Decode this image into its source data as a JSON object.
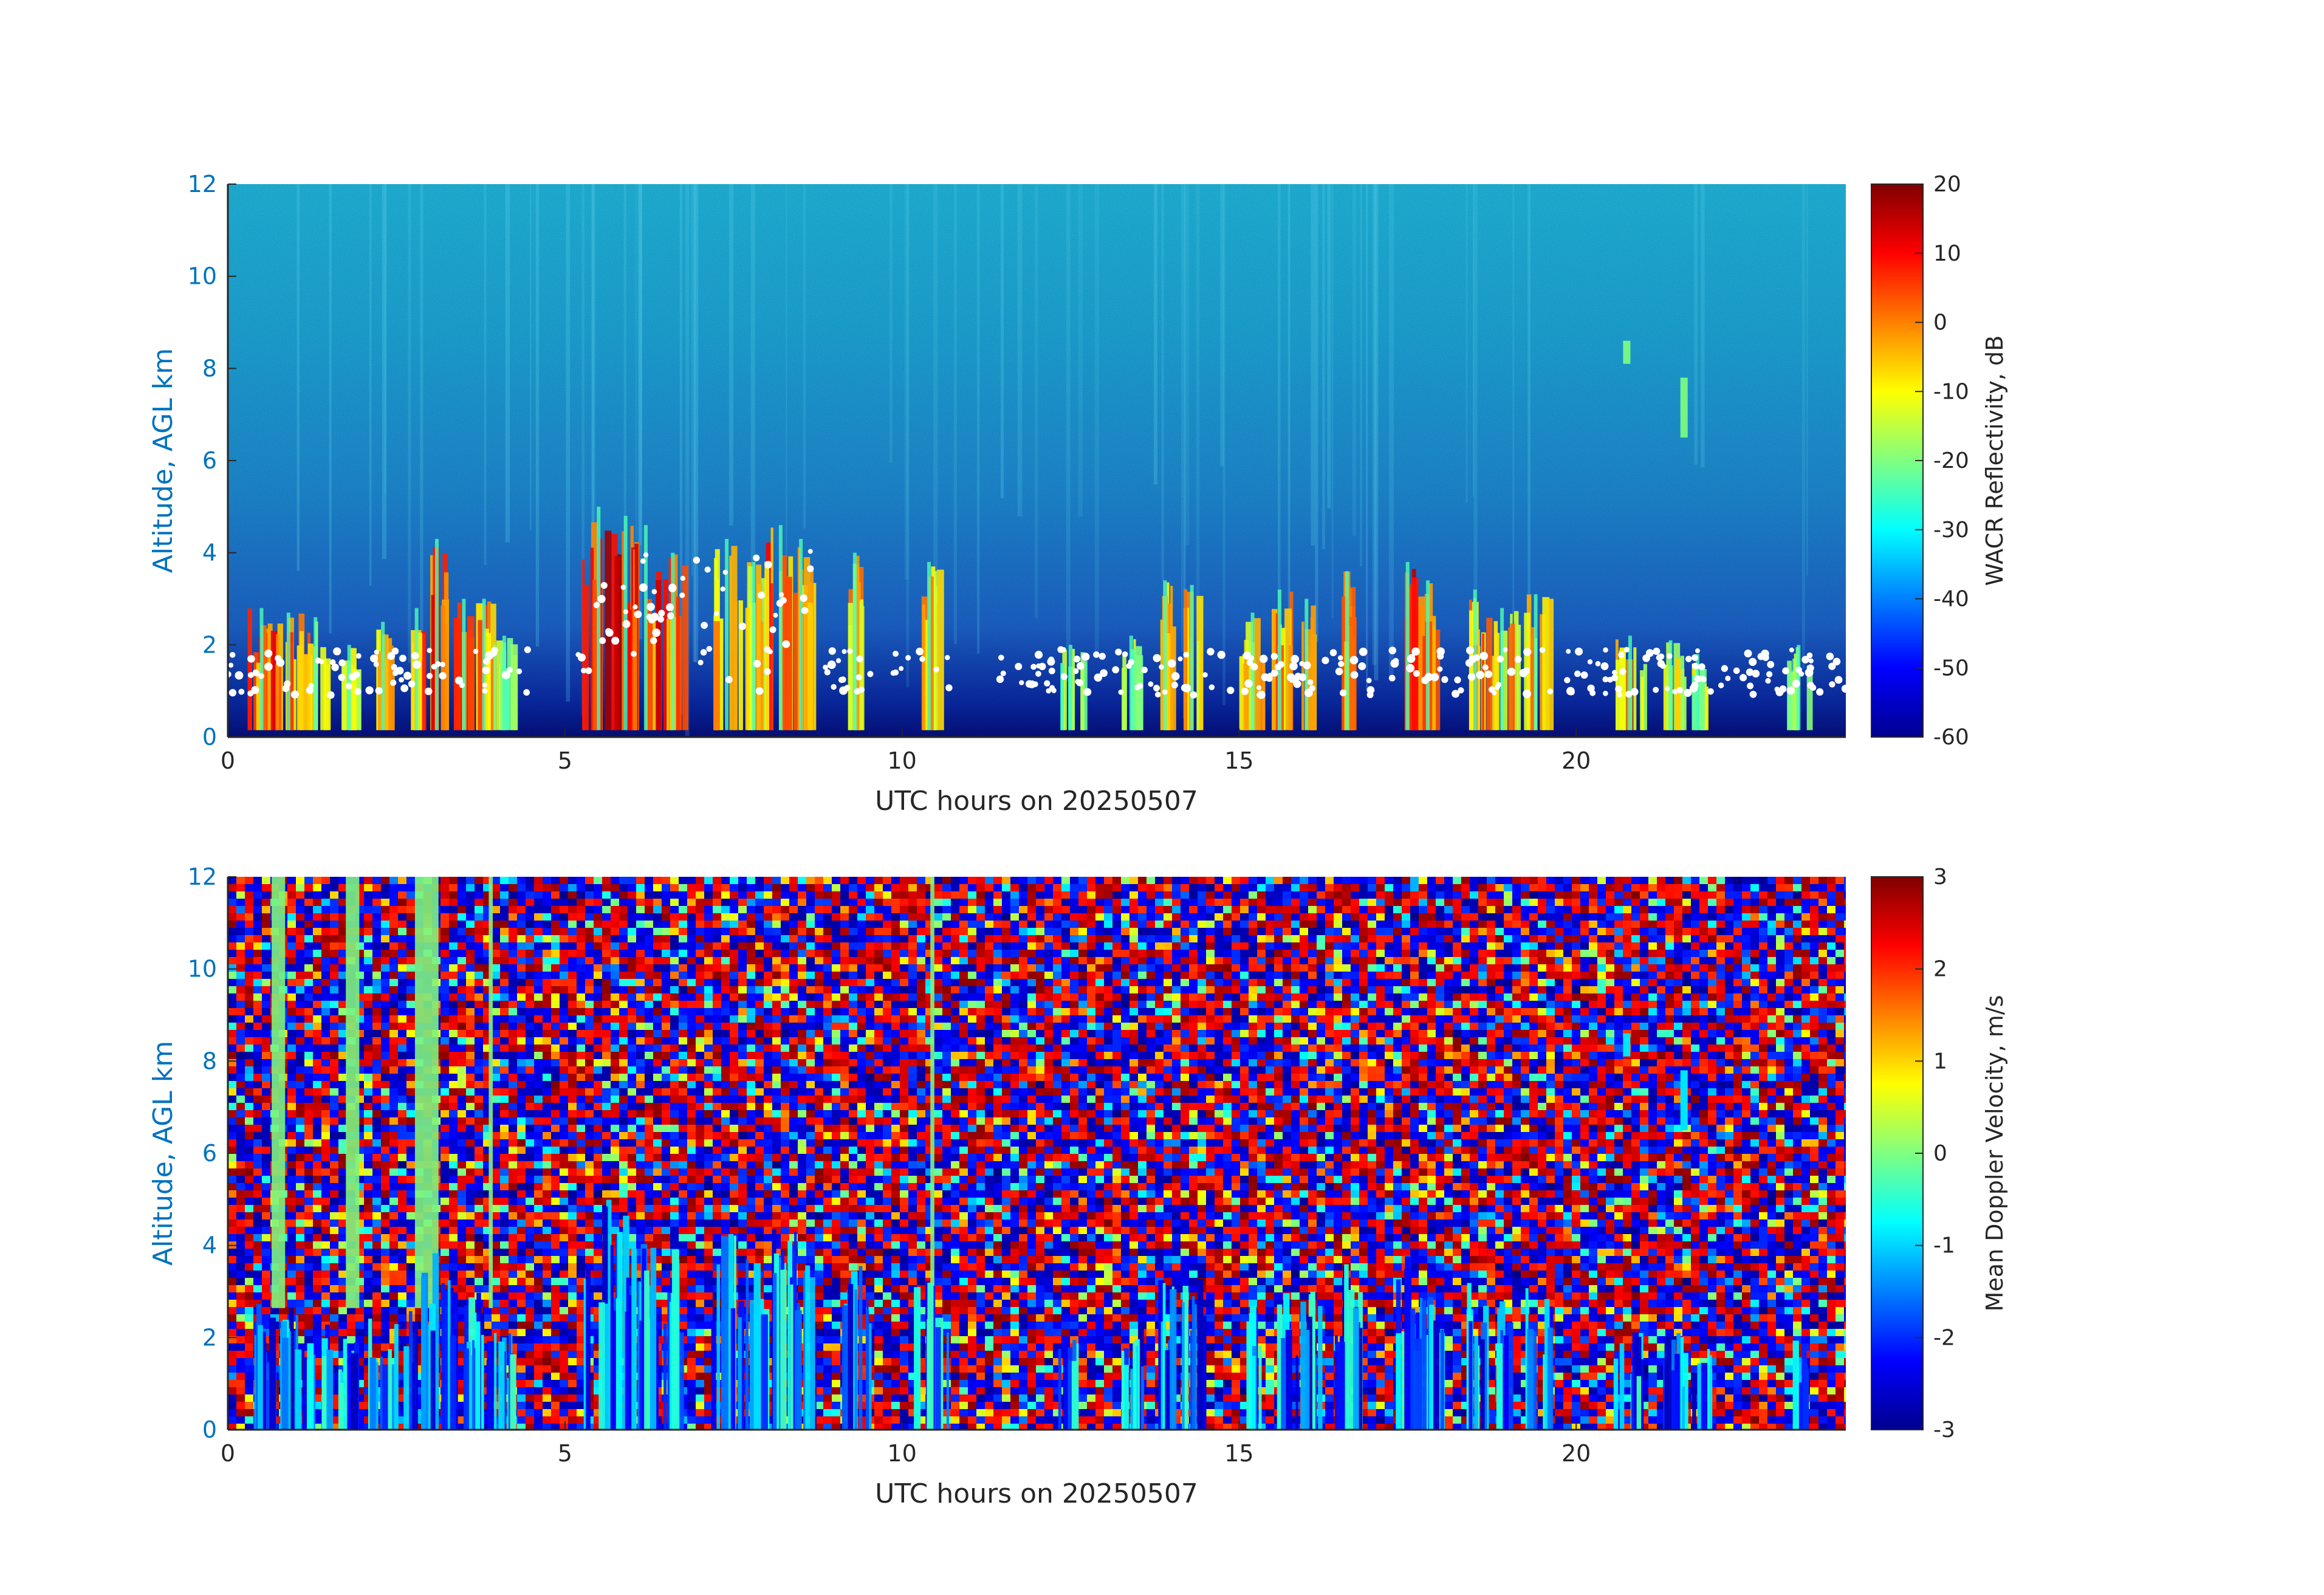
{
  "chart_data": [
    {
      "type": "heatmap",
      "name": "reflectivity-panel",
      "xlabel": "UTC hours on 20250507",
      "ylabel": "Altitude, AGL km",
      "xlim": [
        0,
        24
      ],
      "ylim": [
        0,
        12
      ],
      "xticks": [
        0,
        5,
        10,
        15,
        20
      ],
      "yticks": [
        0,
        2,
        4,
        6,
        8,
        10,
        12
      ],
      "colorbar": {
        "label": "WACR Reflectivity, dB",
        "range": [
          -60,
          20
        ],
        "ticks": [
          20,
          10,
          0,
          -10,
          -20,
          -30,
          -40,
          -50,
          -60
        ],
        "colormap": "jet"
      },
      "background_colors": {
        "upper": "#1fb8e8",
        "mid": "#1e88dd",
        "lower": "#0a1f9a"
      },
      "markers": {
        "description": "white dots (cloud base)",
        "color": "#ffffff"
      },
      "cloud_columns": [
        {
          "x": 0.5,
          "top": 2.8,
          "intensity": 0.85
        },
        {
          "x": 0.9,
          "top": 2.7,
          "intensity": 0.8
        },
        {
          "x": 1.3,
          "top": 2.6,
          "intensity": 0.8
        },
        {
          "x": 1.8,
          "top": 2.0,
          "intensity": 0.6
        },
        {
          "x": 2.3,
          "top": 2.5,
          "intensity": 0.75
        },
        {
          "x": 2.8,
          "top": 2.8,
          "intensity": 0.85
        },
        {
          "x": 3.1,
          "top": 4.3,
          "intensity": 0.9
        },
        {
          "x": 3.5,
          "top": 3.0,
          "intensity": 0.85
        },
        {
          "x": 3.8,
          "top": 3.0,
          "intensity": 0.8
        },
        {
          "x": 4.1,
          "top": 2.2,
          "intensity": 0.6
        },
        {
          "x": 5.5,
          "top": 5.0,
          "intensity": 0.95
        },
        {
          "x": 5.9,
          "top": 4.8,
          "intensity": 0.95
        },
        {
          "x": 6.2,
          "top": 4.6,
          "intensity": 0.9
        },
        {
          "x": 6.6,
          "top": 4.0,
          "intensity": 0.85
        },
        {
          "x": 7.4,
          "top": 4.3,
          "intensity": 0.75
        },
        {
          "x": 7.8,
          "top": 3.8,
          "intensity": 0.7
        },
        {
          "x": 8.2,
          "top": 4.6,
          "intensity": 0.85
        },
        {
          "x": 8.5,
          "top": 4.3,
          "intensity": 0.8
        },
        {
          "x": 9.3,
          "top": 4.0,
          "intensity": 0.75
        },
        {
          "x": 10.4,
          "top": 3.8,
          "intensity": 0.75
        },
        {
          "x": 12.5,
          "top": 2.0,
          "intensity": 0.55
        },
        {
          "x": 13.4,
          "top": 2.2,
          "intensity": 0.6
        },
        {
          "x": 13.9,
          "top": 3.4,
          "intensity": 0.75
        },
        {
          "x": 14.3,
          "top": 3.3,
          "intensity": 0.75
        },
        {
          "x": 15.2,
          "top": 2.7,
          "intensity": 0.7
        },
        {
          "x": 15.6,
          "top": 3.2,
          "intensity": 0.8
        },
        {
          "x": 16.0,
          "top": 3.0,
          "intensity": 0.75
        },
        {
          "x": 16.6,
          "top": 3.6,
          "intensity": 0.8
        },
        {
          "x": 17.5,
          "top": 3.8,
          "intensity": 0.9
        },
        {
          "x": 17.8,
          "top": 3.4,
          "intensity": 0.85
        },
        {
          "x": 18.5,
          "top": 3.2,
          "intensity": 0.8
        },
        {
          "x": 18.9,
          "top": 2.8,
          "intensity": 0.75
        },
        {
          "x": 19.4,
          "top": 3.1,
          "intensity": 0.75
        },
        {
          "x": 20.8,
          "top": 2.2,
          "intensity": 0.7
        },
        {
          "x": 21.4,
          "top": 2.1,
          "intensity": 0.65
        },
        {
          "x": 21.8,
          "top": 1.8,
          "intensity": 0.6
        },
        {
          "x": 23.3,
          "top": 2.0,
          "intensity": 0.55
        }
      ],
      "features": [
        {
          "x": 20.75,
          "bottom": 8.1,
          "top": 8.6
        },
        {
          "x": 21.6,
          "bottom": 6.5,
          "top": 7.8
        }
      ]
    },
    {
      "type": "heatmap",
      "name": "velocity-panel",
      "xlabel": "UTC hours on 20250507",
      "ylabel": "Altitude, AGL km",
      "xlim": [
        0,
        24
      ],
      "ylim": [
        0,
        12
      ],
      "xticks": [
        0,
        5,
        10,
        15,
        20
      ],
      "yticks": [
        0,
        2,
        4,
        6,
        8,
        10,
        12
      ],
      "colorbar": {
        "label": "Mean Doppler Velocity, m/s",
        "range": [
          -3,
          3
        ],
        "ticks": [
          3,
          2,
          1,
          0,
          -1,
          -2,
          -3
        ],
        "colormap": "jet"
      },
      "noise_fill": "random jet colors",
      "green_bands": [
        {
          "x": 0.75,
          "width": 0.2
        },
        {
          "x": 1.85,
          "width": 0.2
        },
        {
          "x": 2.95,
          "width": 0.35
        },
        {
          "x": 3.9,
          "width": 0.06
        },
        {
          "x": 10.45,
          "width": 0.06
        }
      ]
    }
  ]
}
